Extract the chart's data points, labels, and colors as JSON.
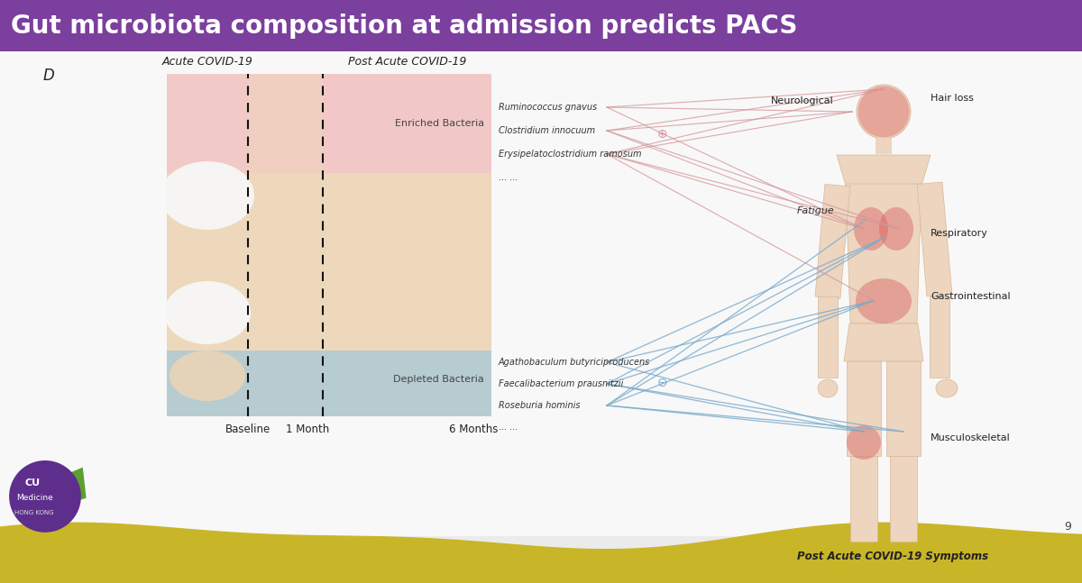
{
  "title": "Gut microbiota composition at admission predicts PACS",
  "title_bg": "#7B3F9E",
  "title_color": "#FFFFFF",
  "slide_bg": "#EBEBEB",
  "content_bg": "#F8F8F8",
  "panel_label": "D",
  "acute_label": "Acute COVID-19",
  "post_label": "Post Acute COVID-19",
  "baseline_label": "Baseline",
  "month1_label": "1 Month",
  "month6_label": "6 Months",
  "enriched_label": "Enriched Bacteria",
  "depleted_label": "Depleted Bacteria",
  "enriched_color_pink": "#F2C8C8",
  "enriched_color_beige": "#EDD5B5",
  "depleted_color_blue": "#AECAD6",
  "enriched_bacteria": [
    "Ruminococcus gnavus",
    "Clostridium innocuum",
    "Erysipelatoclostridium ramosum",
    "... ..."
  ],
  "depleted_bacteria": [
    "Agathobaculum butyriciproducens",
    "Faecalibacterium prausnitzii",
    "Roseburia hominis",
    "... ..."
  ],
  "symptoms_title": "Post Acute COVID-19 Symptoms",
  "neurological": "Neurological",
  "hair_loss": "Hair loss",
  "fatigue": "Fatigue",
  "respiratory": "Respiratory",
  "gastrointestinal": "Gastrointestinal",
  "musculoskeletal": "Musculoskeletal",
  "plus_symbol": "⊕",
  "minus_symbol": "⊖",
  "line_color_enriched": "#D4959A",
  "line_color_depleted": "#7AABCC",
  "body_skin": "#EDD5C0",
  "body_skin_dark": "#D8B898",
  "body_highlight": "#D96060",
  "page_number": "9",
  "wave_color": "#C9B528",
  "logo_purple": "#5E2E8C",
  "logo_green": "#5C9E30"
}
